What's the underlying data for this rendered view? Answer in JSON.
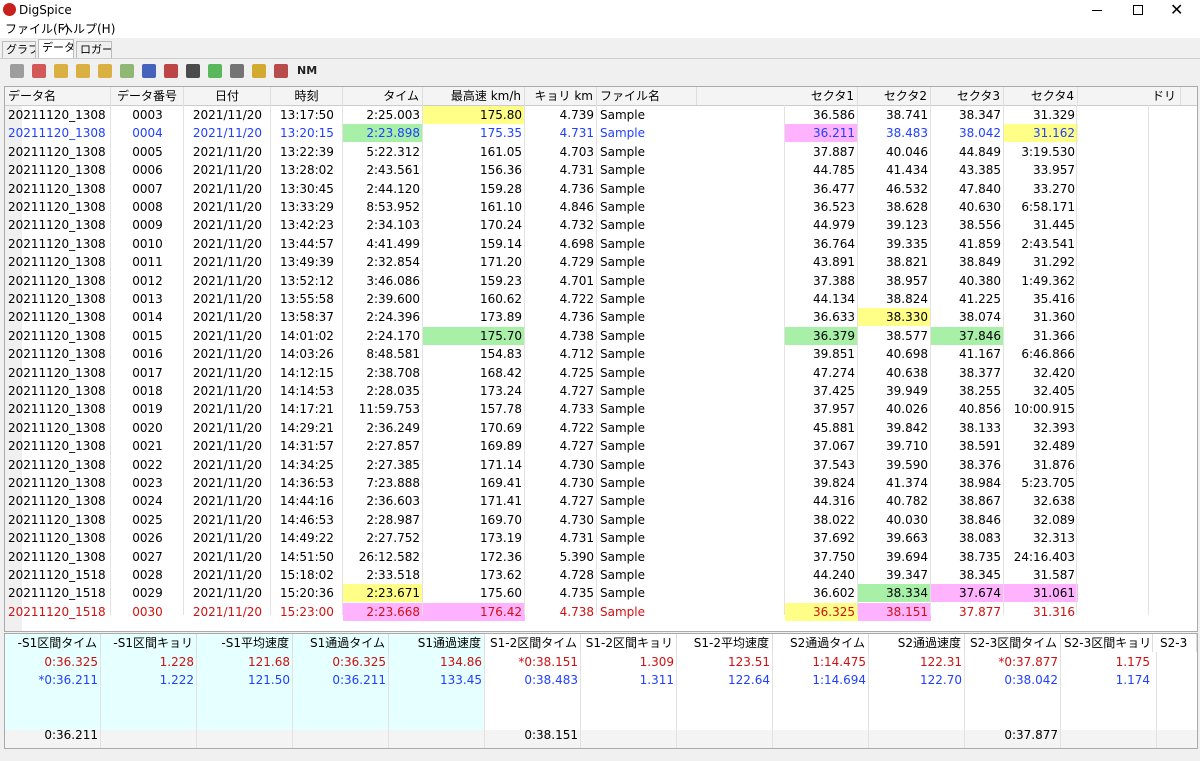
{
  "window": {
    "title": "DigSpice"
  },
  "menu": [
    "ファイル(F)",
    "ヘルプ(H)"
  ],
  "tabs": [
    "グラフ",
    "データ",
    "ロガー"
  ],
  "toolbar": {
    "label": "NM"
  },
  "grid": {
    "columns": [
      "データ名",
      "データ番号",
      "日付",
      "時刻",
      "タイム",
      "最高速 km/h",
      "キョリ km",
      "ファイル名",
      "セクタ1",
      "セクタ2",
      "セクタ3",
      "セクタ4",
      "ドリ"
    ],
    "rows": [
      [
        "20211120_1308",
        "0003",
        "2021/11/20",
        "13:17:50",
        "2:25.003",
        "175.80",
        "4.739",
        "Sample",
        "36.586",
        "38.741",
        "38.347",
        "31.329"
      ],
      [
        "20211120_1308",
        "0004",
        "2021/11/20",
        "13:20:15",
        "2:23.898",
        "175.35",
        "4.731",
        "Sample",
        "36.211",
        "38.483",
        "38.042",
        "31.162"
      ],
      [
        "20211120_1308",
        "0005",
        "2021/11/20",
        "13:22:39",
        "5:22.312",
        "161.05",
        "4.703",
        "Sample",
        "37.887",
        "40.046",
        "44.849",
        "3:19.530"
      ],
      [
        "20211120_1308",
        "0006",
        "2021/11/20",
        "13:28:02",
        "2:43.561",
        "156.36",
        "4.731",
        "Sample",
        "44.785",
        "41.434",
        "43.385",
        "33.957"
      ],
      [
        "20211120_1308",
        "0007",
        "2021/11/20",
        "13:30:45",
        "2:44.120",
        "159.28",
        "4.736",
        "Sample",
        "36.477",
        "46.532",
        "47.840",
        "33.270"
      ],
      [
        "20211120_1308",
        "0008",
        "2021/11/20",
        "13:33:29",
        "8:53.952",
        "161.10",
        "4.846",
        "Sample",
        "36.523",
        "38.628",
        "40.630",
        "6:58.171"
      ],
      [
        "20211120_1308",
        "0009",
        "2021/11/20",
        "13:42:23",
        "2:34.103",
        "170.24",
        "4.732",
        "Sample",
        "44.979",
        "39.123",
        "38.556",
        "31.445"
      ],
      [
        "20211120_1308",
        "0010",
        "2021/11/20",
        "13:44:57",
        "4:41.499",
        "159.14",
        "4.698",
        "Sample",
        "36.764",
        "39.335",
        "41.859",
        "2:43.541"
      ],
      [
        "20211120_1308",
        "0011",
        "2021/11/20",
        "13:49:39",
        "2:32.854",
        "171.20",
        "4.729",
        "Sample",
        "43.891",
        "38.821",
        "38.849",
        "31.292"
      ],
      [
        "20211120_1308",
        "0012",
        "2021/11/20",
        "13:52:12",
        "3:46.086",
        "159.23",
        "4.701",
        "Sample",
        "37.388",
        "38.957",
        "40.380",
        "1:49.362"
      ],
      [
        "20211120_1308",
        "0013",
        "2021/11/20",
        "13:55:58",
        "2:39.600",
        "160.62",
        "4.722",
        "Sample",
        "44.134",
        "38.824",
        "41.225",
        "35.416"
      ],
      [
        "20211120_1308",
        "0014",
        "2021/11/20",
        "13:58:37",
        "2:24.396",
        "173.89",
        "4.736",
        "Sample",
        "36.633",
        "38.330",
        "38.074",
        "31.360"
      ],
      [
        "20211120_1308",
        "0015",
        "2021/11/20",
        "14:01:02",
        "2:24.170",
        "175.70",
        "4.738",
        "Sample",
        "36.379",
        "38.577",
        "37.846",
        "31.366"
      ],
      [
        "20211120_1308",
        "0016",
        "2021/11/20",
        "14:03:26",
        "8:48.581",
        "154.83",
        "4.712",
        "Sample",
        "39.851",
        "40.698",
        "41.167",
        "6:46.866"
      ],
      [
        "20211120_1308",
        "0017",
        "2021/11/20",
        "14:12:15",
        "2:38.708",
        "168.42",
        "4.725",
        "Sample",
        "47.274",
        "40.638",
        "38.377",
        "32.420"
      ],
      [
        "20211120_1308",
        "0018",
        "2021/11/20",
        "14:14:53",
        "2:28.035",
        "173.24",
        "4.727",
        "Sample",
        "37.425",
        "39.949",
        "38.255",
        "32.405"
      ],
      [
        "20211120_1308",
        "0019",
        "2021/11/20",
        "14:17:21",
        "11:59.753",
        "157.78",
        "4.733",
        "Sample",
        "37.957",
        "40.026",
        "40.856",
        "10:00.915"
      ],
      [
        "20211120_1308",
        "0020",
        "2021/11/20",
        "14:29:21",
        "2:36.249",
        "170.69",
        "4.722",
        "Sample",
        "45.881",
        "39.842",
        "38.133",
        "32.393"
      ],
      [
        "20211120_1308",
        "0021",
        "2021/11/20",
        "14:31:57",
        "2:27.857",
        "169.89",
        "4.727",
        "Sample",
        "37.067",
        "39.710",
        "38.591",
        "32.489"
      ],
      [
        "20211120_1308",
        "0022",
        "2021/11/20",
        "14:34:25",
        "2:27.385",
        "171.14",
        "4.730",
        "Sample",
        "37.543",
        "39.590",
        "38.376",
        "31.876"
      ],
      [
        "20211120_1308",
        "0023",
        "2021/11/20",
        "14:36:53",
        "7:23.888",
        "169.41",
        "4.730",
        "Sample",
        "39.824",
        "41.374",
        "38.984",
        "5:23.705"
      ],
      [
        "20211120_1308",
        "0024",
        "2021/11/20",
        "14:44:16",
        "2:36.603",
        "171.41",
        "4.727",
        "Sample",
        "44.316",
        "40.782",
        "38.867",
        "32.638"
      ],
      [
        "20211120_1308",
        "0025",
        "2021/11/20",
        "14:46:53",
        "2:28.987",
        "169.70",
        "4.730",
        "Sample",
        "38.022",
        "40.030",
        "38.846",
        "32.089"
      ],
      [
        "20211120_1308",
        "0026",
        "2021/11/20",
        "14:49:22",
        "2:27.752",
        "173.19",
        "4.731",
        "Sample",
        "37.692",
        "39.663",
        "38.083",
        "32.313"
      ],
      [
        "20211120_1308",
        "0027",
        "2021/11/20",
        "14:51:50",
        "26:12.582",
        "172.36",
        "5.390",
        "Sample",
        "37.750",
        "39.694",
        "38.735",
        "24:16.403"
      ],
      [
        "20211120_1518",
        "0028",
        "2021/11/20",
        "15:18:02",
        "2:33.518",
        "173.62",
        "4.728",
        "Sample",
        "44.240",
        "39.347",
        "38.345",
        "31.587"
      ],
      [
        "20211120_1518",
        "0029",
        "2021/11/20",
        "15:20:36",
        "2:23.671",
        "175.60",
        "4.735",
        "Sample",
        "36.602",
        "38.334",
        "37.674",
        "31.061"
      ],
      [
        "20211120_1518",
        "0030",
        "2021/11/20",
        "15:23:00",
        "2:23.668",
        "176.42",
        "4.738",
        "Sample",
        "36.325",
        "38.151",
        "37.877",
        "31.316"
      ]
    ]
  },
  "summary": {
    "columns": [
      "-S1区間タイム",
      "-S1区間キョリ",
      "-S1平均速度",
      "S1通過タイム",
      "S1通過速度",
      "S1-2区間タイム",
      "S1-2区間キョリ",
      "S1-2平均速度",
      "S2通過タイム",
      "S2通過速度",
      "S2-3区間タイム",
      "S2-3区間キョリ",
      "S2-3"
    ],
    "rows": [
      [
        "0:36.325",
        "1.228",
        "121.68",
        "0:36.325",
        "134.86",
        "*0:38.151",
        "1.309",
        "123.51",
        "1:14.475",
        "122.31",
        "*0:37.877",
        "1.175"
      ],
      [
        "*0:36.211",
        "1.222",
        "121.50",
        "0:36.211",
        "133.45",
        "0:38.483",
        "1.311",
        "122.64",
        "1:14.694",
        "122.70",
        "0:38.042",
        "1.174"
      ],
      [
        "0:36.211",
        null,
        null,
        null,
        null,
        "0:38.151",
        null,
        null,
        null,
        null,
        "0:37.877",
        null
      ]
    ]
  }
}
